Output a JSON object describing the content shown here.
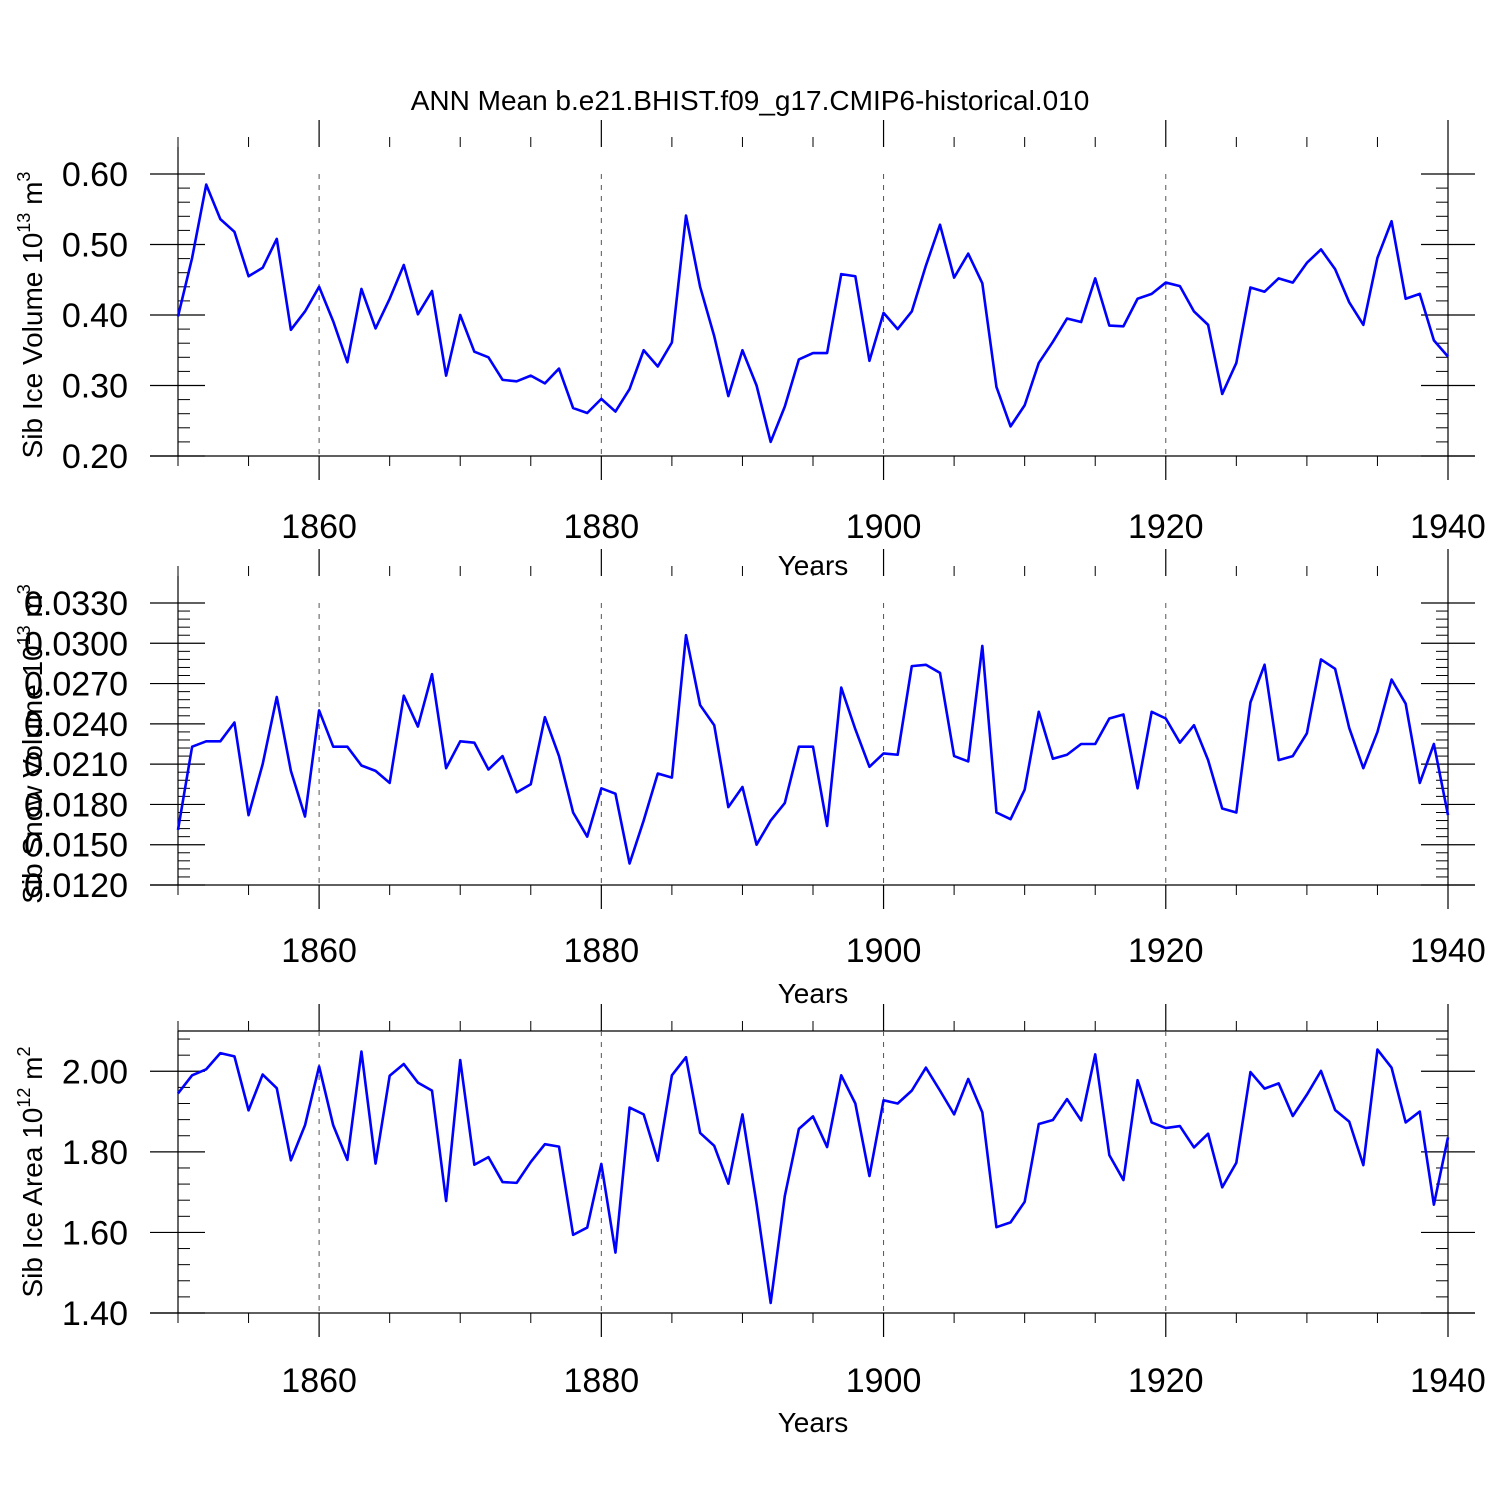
{
  "title": "ANN Mean b.e21.BHIST.f09_g17.CMIP6-historical.010",
  "colors": {
    "line": "#0000ff",
    "axis": "#000000",
    "grid": "#555555",
    "background": "#ffffff"
  },
  "chart_data": [
    {
      "type": "line",
      "title": "",
      "xlabel": "Years",
      "ylabel_parts": {
        "base": "Sib Ice Volume 10",
        "exp": "13",
        "unit": " m",
        "unit_exp": "3"
      },
      "xlim": [
        1850,
        1940
      ],
      "ylim": [
        0.2,
        0.6
      ],
      "xticks": [
        1860,
        1880,
        1900,
        1920,
        1940
      ],
      "xtick_labels": [
        "1860",
        "1880",
        "1900",
        "1920",
        "1940"
      ],
      "yticks": [
        0.2,
        0.3,
        0.4,
        0.5,
        0.6
      ],
      "ytick_labels": [
        "0.20",
        "0.30",
        "0.40",
        "0.50",
        "0.60"
      ],
      "grid": "dashed vertical at major x ticks",
      "x_start": 1850,
      "series": [
        {
          "values": [
            0.398,
            0.481,
            0.585,
            0.536,
            0.518,
            0.455,
            0.467,
            0.508,
            0.379,
            0.405,
            0.44,
            0.391,
            0.333,
            0.437,
            0.381,
            0.423,
            0.471,
            0.401,
            0.434,
            0.314,
            0.4,
            0.348,
            0.34,
            0.308,
            0.306,
            0.314,
            0.303,
            0.324,
            0.268,
            0.261,
            0.281,
            0.263,
            0.295,
            0.35,
            0.327,
            0.361,
            0.541,
            0.44,
            0.37,
            0.285,
            0.35,
            0.3,
            0.22,
            0.27,
            0.337,
            0.346,
            0.346,
            0.458,
            0.455,
            0.335,
            0.403,
            0.38,
            0.405,
            0.47,
            0.528,
            0.453,
            0.487,
            0.445,
            0.298,
            0.242,
            0.272,
            0.332,
            0.362,
            0.395,
            0.39,
            0.452,
            0.385,
            0.384,
            0.423,
            0.43,
            0.446,
            0.441,
            0.405,
            0.386,
            0.288,
            0.332,
            0.439,
            0.433,
            0.452,
            0.446,
            0.474,
            0.493,
            0.465,
            0.418,
            0.386,
            0.481,
            0.533,
            0.423,
            0.43,
            0.364,
            0.341
          ]
        }
      ]
    },
    {
      "type": "line",
      "title": "",
      "xlabel": "Years",
      "ylabel_parts": {
        "base": "Sib Snow Volume 10",
        "exp": "13",
        "unit": " m",
        "unit_exp": "3"
      },
      "xlim": [
        1850,
        1940
      ],
      "ylim": [
        0.012,
        0.033
      ],
      "xticks": [
        1860,
        1880,
        1900,
        1920,
        1940
      ],
      "xtick_labels": [
        "1860",
        "1880",
        "1900",
        "1920",
        "1940"
      ],
      "yticks": [
        0.012,
        0.015,
        0.018,
        0.021,
        0.024,
        0.027,
        0.03,
        0.033
      ],
      "ytick_labels": [
        "0.0120",
        "0.0150",
        "0.0180",
        "0.0210",
        "0.0240",
        "0.0270",
        "0.0300",
        "0.0330"
      ],
      "grid": "dashed vertical at major x ticks",
      "x_start": 1850,
      "series": [
        {
          "values": [
            0.0161,
            0.0223,
            0.0227,
            0.0227,
            0.0241,
            0.0172,
            0.021,
            0.026,
            0.0205,
            0.0171,
            0.025,
            0.0223,
            0.0223,
            0.0209,
            0.0205,
            0.0196,
            0.0261,
            0.0238,
            0.0277,
            0.0207,
            0.0227,
            0.0226,
            0.0206,
            0.0216,
            0.0189,
            0.0195,
            0.0245,
            0.0216,
            0.0174,
            0.0156,
            0.0192,
            0.0188,
            0.0136,
            0.0168,
            0.0203,
            0.02,
            0.0306,
            0.0254,
            0.0239,
            0.0178,
            0.0193,
            0.015,
            0.0168,
            0.0181,
            0.0223,
            0.0223,
            0.0164,
            0.0267,
            0.0236,
            0.0208,
            0.0218,
            0.0217,
            0.0283,
            0.0284,
            0.0278,
            0.0216,
            0.0212,
            0.0298,
            0.0174,
            0.0169,
            0.0191,
            0.0249,
            0.0214,
            0.0217,
            0.0225,
            0.0225,
            0.0244,
            0.0247,
            0.0192,
            0.0249,
            0.0244,
            0.0226,
            0.0239,
            0.0213,
            0.0177,
            0.0174,
            0.0256,
            0.0284,
            0.0213,
            0.0216,
            0.0233,
            0.0288,
            0.0281,
            0.0237,
            0.0207,
            0.0234,
            0.0273,
            0.0255,
            0.0196,
            0.0225,
            0.0172
          ]
        }
      ]
    },
    {
      "type": "line",
      "title": "",
      "xlabel": "Years",
      "ylabel_parts": {
        "base": "Sib Ice Area 10",
        "exp": "12",
        "unit": " m",
        "unit_exp": "2"
      },
      "xlim": [
        1850,
        1940
      ],
      "ylim": [
        1.4,
        2.1
      ],
      "xticks": [
        1860,
        1880,
        1900,
        1920,
        1940
      ],
      "xtick_labels": [
        "1860",
        "1880",
        "1900",
        "1920",
        "1940"
      ],
      "yticks": [
        1.4,
        1.6,
        1.8,
        2.0
      ],
      "ytick_labels": [
        "1.40",
        "1.60",
        "1.80",
        "2.00"
      ],
      "grid": "dashed vertical at major x ticks",
      "x_start": 1850,
      "series": [
        {
          "values": [
            1.945,
            1.99,
            2.005,
            2.045,
            2.037,
            1.903,
            1.992,
            1.958,
            1.779,
            1.866,
            2.012,
            1.866,
            1.78,
            2.049,
            1.771,
            1.989,
            2.018,
            1.972,
            1.952,
            1.678,
            2.028,
            1.768,
            1.787,
            1.725,
            1.723,
            1.775,
            1.819,
            1.813,
            1.594,
            1.612,
            1.77,
            1.55,
            1.91,
            1.893,
            1.778,
            1.99,
            2.035,
            1.847,
            1.815,
            1.721,
            1.893,
            1.671,
            1.425,
            1.69,
            1.857,
            1.888,
            1.812,
            1.99,
            1.92,
            1.74,
            1.928,
            1.92,
            1.952,
            2.009,
            1.952,
            1.893,
            1.981,
            1.898,
            1.613,
            1.625,
            1.676,
            1.869,
            1.879,
            1.931,
            1.878,
            2.042,
            1.792,
            1.73,
            1.978,
            1.873,
            1.859,
            1.864,
            1.811,
            1.845,
            1.712,
            1.773,
            1.998,
            1.957,
            1.97,
            1.889,
            1.942,
            2.001,
            1.904,
            1.875,
            1.767,
            2.054,
            2.009,
            1.873,
            1.9,
            1.669,
            1.836
          ]
        }
      ]
    }
  ]
}
